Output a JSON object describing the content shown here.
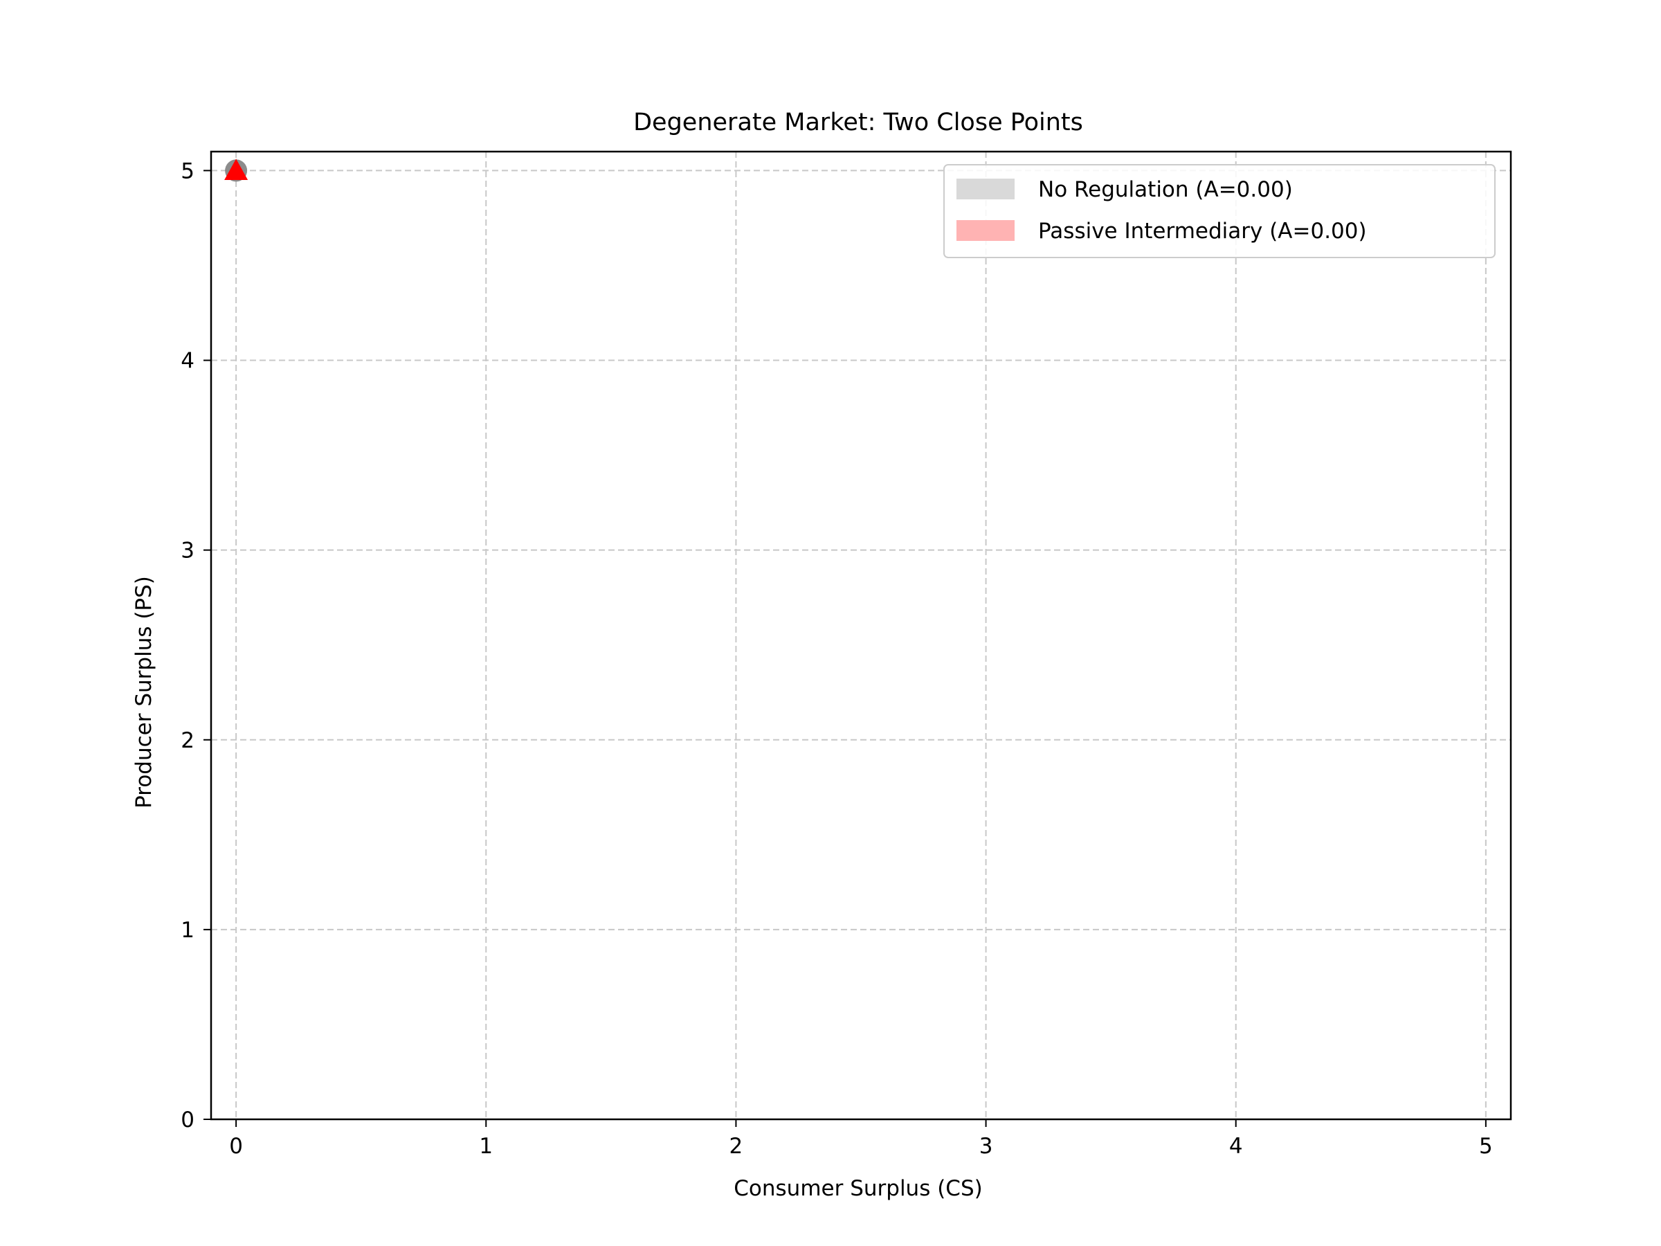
{
  "chart_data": {
    "type": "scatter",
    "title": "Degenerate Market: Two Close Points",
    "xlabel": "Consumer Surplus (CS)",
    "ylabel": "Producer Surplus (PS)",
    "xlim": [
      -0.1,
      5.1
    ],
    "ylim": [
      0,
      5.1
    ],
    "xticks": [
      0,
      1,
      2,
      3,
      4,
      5
    ],
    "yticks": [
      0,
      1,
      2,
      3,
      4,
      5
    ],
    "grid": true,
    "legend_position": "top-right",
    "series": [
      {
        "name": "No Regulation (A=0.00)",
        "marker": "circle",
        "color": "#808080",
        "legend_color": "#d9d9d9",
        "points": [
          {
            "x": 0,
            "y": 5
          }
        ]
      },
      {
        "name": "Passive Intermediary (A=0.00)",
        "marker": "triangle",
        "color": "#ff0000",
        "legend_color": "#ffb3b3",
        "points": [
          {
            "x": 0,
            "y": 5
          }
        ]
      }
    ]
  }
}
